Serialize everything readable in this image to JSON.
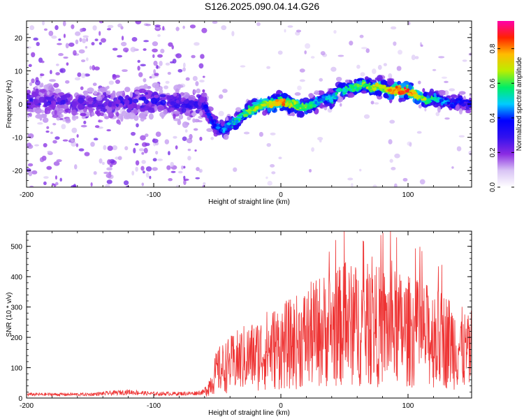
{
  "title": "S126.2025.090.04.14.G26",
  "colors": {
    "snr_line": "#ee3333",
    "colormap": [
      "#ffffff",
      "#d9c4f5",
      "#8a2be2",
      "#3311ee",
      "#0000ff",
      "#00ccff",
      "#00ee66",
      "#bbee00",
      "#ffbb00",
      "#ff2200",
      "#ff00aa"
    ]
  },
  "chart_data": [
    {
      "type": "heatmap",
      "xlabel": "Height of straight line (km)",
      "ylabel": "Frequency (Hz)",
      "xlim": [
        -200,
        150
      ],
      "ylim": [
        -25,
        25
      ],
      "xticks": [
        -200,
        -100,
        0,
        100
      ],
      "yticks": [
        -20,
        -10,
        0,
        10,
        20
      ],
      "colorbar": {
        "label": "Normalized spectral amplitude",
        "range": [
          0,
          0.96
        ],
        "ticks": [
          0.0,
          0.2,
          0.4,
          0.6,
          0.8
        ]
      },
      "ridge": {
        "x": [
          -200,
          -150,
          -100,
          -70,
          -60,
          -55,
          -50,
          -45,
          -40,
          -35,
          -30,
          -25,
          -20,
          -15,
          -10,
          -5,
          0,
          5,
          10,
          15,
          20,
          25,
          30,
          35,
          40,
          45,
          50,
          55,
          60,
          65,
          70,
          75,
          80,
          85,
          90,
          95,
          100,
          105,
          110,
          115,
          120,
          125,
          130,
          135,
          140,
          145,
          150
        ],
        "y": [
          1,
          0,
          1,
          0,
          0,
          -5,
          -7,
          -8,
          -6,
          -5,
          -3,
          -2,
          -1,
          0,
          0,
          0,
          1,
          0,
          0,
          -1,
          -1,
          0,
          1,
          2,
          1,
          4,
          4,
          5,
          5,
          6,
          5,
          5,
          5,
          4,
          4,
          4,
          4,
          3,
          2,
          1,
          2,
          1,
          1,
          0,
          1,
          0,
          0
        ],
        "amplitude": [
          0.25,
          0.25,
          0.3,
          0.3,
          0.3,
          0.35,
          0.4,
          0.45,
          0.45,
          0.5,
          0.55,
          0.6,
          0.65,
          0.65,
          0.7,
          0.7,
          0.85,
          0.7,
          0.65,
          0.6,
          0.6,
          0.5,
          0.45,
          0.45,
          0.5,
          0.5,
          0.55,
          0.55,
          0.55,
          0.6,
          0.65,
          0.65,
          0.7,
          0.75,
          0.8,
          0.9,
          0.85,
          0.75,
          0.65,
          0.6,
          0.5,
          0.45,
          0.4,
          0.35,
          0.35,
          0.3,
          0.3
        ]
      }
    },
    {
      "type": "line",
      "xlabel": "Height of straight line (km)",
      "ylabel": "SNR (10 * v/v)",
      "xlim": [
        -200,
        150
      ],
      "ylim": [
        0,
        550
      ],
      "xticks": [
        -200,
        -100,
        0,
        100
      ],
      "yticks": [
        0,
        100,
        200,
        300,
        400,
        500
      ],
      "series": [
        {
          "x": [
            -200,
            -150,
            -120,
            -100,
            -70,
            -60,
            -55,
            -50,
            -40,
            -30,
            -20,
            -10,
            0,
            10,
            20,
            30,
            40,
            50,
            60,
            70,
            80,
            90,
            100,
            110,
            120,
            130,
            140,
            150
          ],
          "y": [
            12,
            12,
            20,
            14,
            15,
            20,
            50,
            90,
            110,
            130,
            140,
            160,
            170,
            180,
            200,
            220,
            230,
            240,
            240,
            240,
            235,
            230,
            220,
            210,
            200,
            190,
            170,
            140
          ]
        }
      ]
    }
  ]
}
